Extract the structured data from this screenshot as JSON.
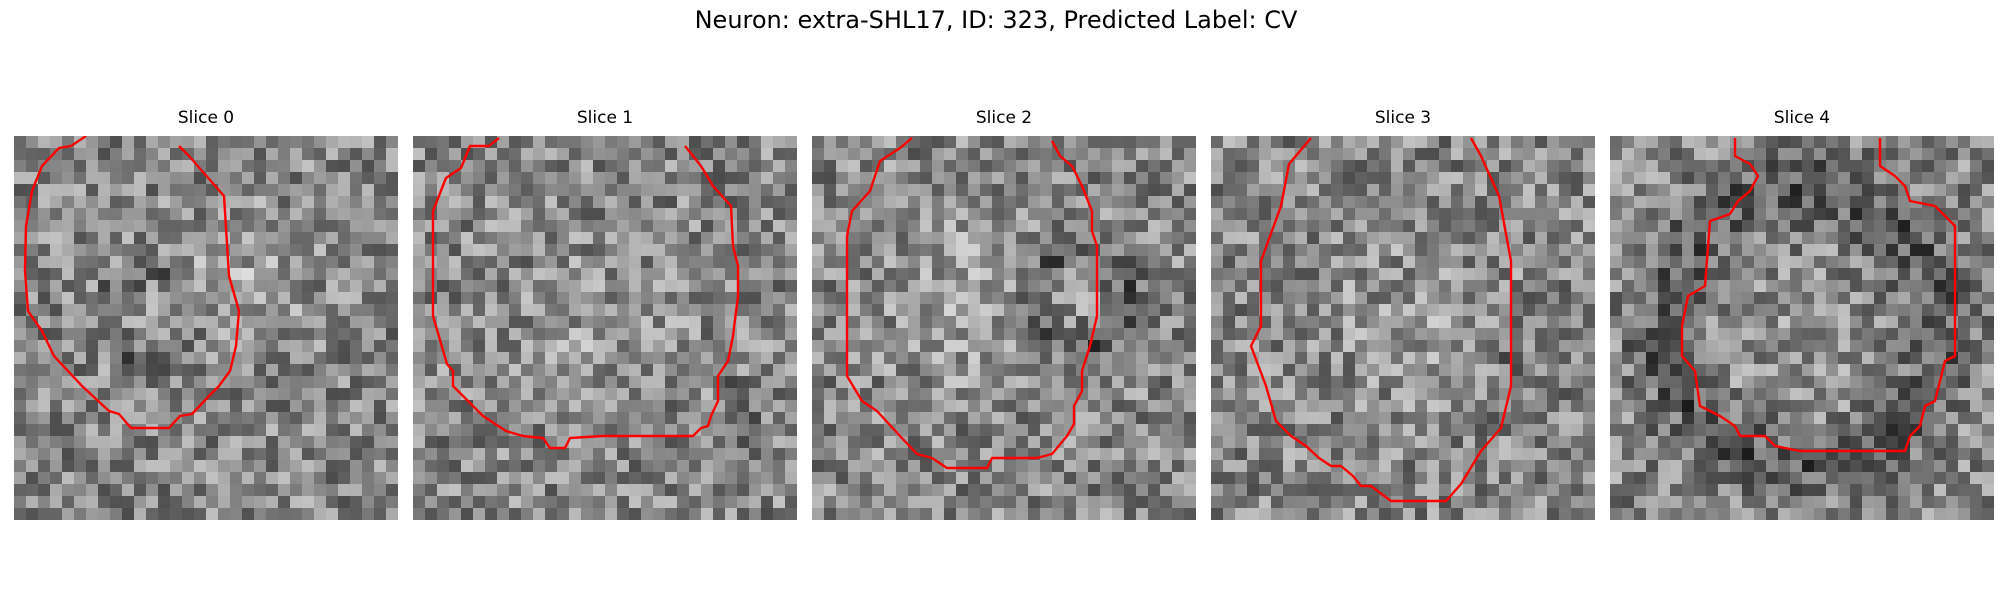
{
  "figure": {
    "title": "Neuron: extra-SHL17, ID: 323, Predicted Label: CV"
  },
  "slices": [
    {
      "label": "Slice 0"
    },
    {
      "label": "Slice 1"
    },
    {
      "label": "Slice 2"
    },
    {
      "label": "Slice 3"
    },
    {
      "label": "Slice 4"
    }
  ],
  "colors": {
    "contour": "#ff0000",
    "colormap": "grayscale"
  }
}
